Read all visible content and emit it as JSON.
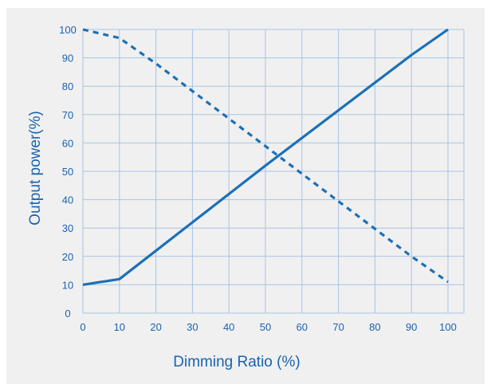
{
  "colors": {
    "line": "#1a70b8",
    "grid": "#a7c4e3",
    "text": "#1a62b0",
    "panel": "#f0f0f0"
  },
  "chart_data": {
    "type": "line",
    "title": "",
    "xlabel": "Dimming  Ratio (%)",
    "ylabel": "Output power(%)",
    "xlim": [
      0,
      100
    ],
    "ylim": [
      0,
      100
    ],
    "x_ticks": [
      "0",
      "10",
      "20",
      "30",
      "40",
      "50",
      "60",
      "70",
      "80",
      "90",
      "100"
    ],
    "y_ticks": [
      "0",
      "10",
      "20",
      "30",
      "40",
      "50",
      "60",
      "70",
      "80",
      "90",
      "100"
    ],
    "grid": true,
    "legend": "none",
    "series": [
      {
        "style": "solid",
        "points": [
          [
            0,
            10
          ],
          [
            10,
            12
          ],
          [
            50,
            52
          ],
          [
            90,
            91
          ],
          [
            100,
            100
          ]
        ]
      },
      {
        "style": "dashed",
        "points": [
          [
            0,
            100
          ],
          [
            10,
            97
          ],
          [
            20,
            88
          ],
          [
            90,
            20
          ],
          [
            100,
            11
          ]
        ]
      }
    ]
  }
}
